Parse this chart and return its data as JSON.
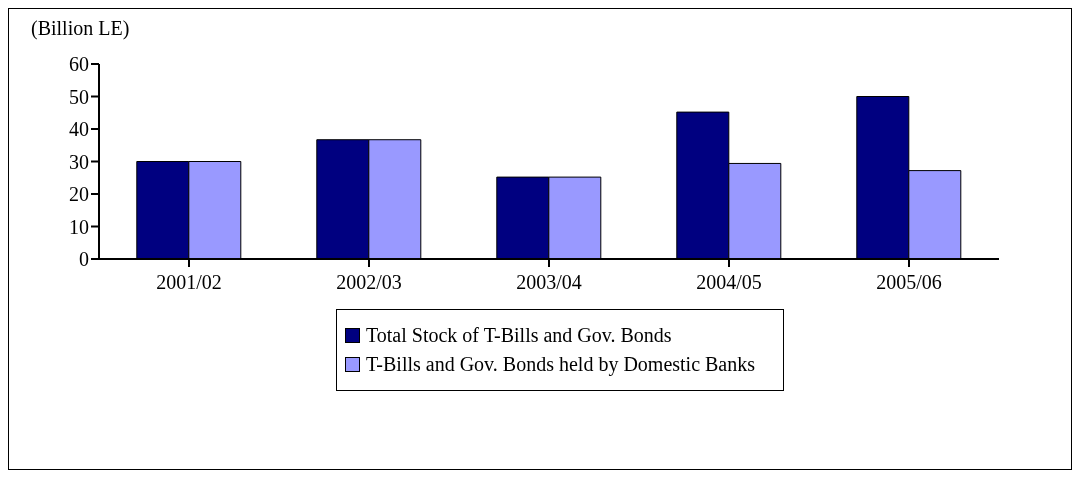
{
  "chart_data": {
    "type": "bar",
    "ylabel": "(Billion LE)",
    "categories": [
      "2001/02",
      "2002/03",
      "2003/04",
      "2004/05",
      "2005/06"
    ],
    "series": [
      {
        "name": "Total Stock of T-Bills and Gov. Bonds",
        "color": "#000080",
        "values": [
          30,
          36.7,
          25.2,
          45.2,
          50
        ]
      },
      {
        "name": "T-Bills and Gov. Bonds held by Domestic Banks",
        "color": "#9999ff",
        "values": [
          30,
          36.7,
          25.2,
          29.4,
          27.2
        ]
      }
    ],
    "ylim": [
      0,
      60
    ],
    "yticks": [
      0,
      10,
      20,
      30,
      40,
      50,
      60
    ],
    "grid": false,
    "legend": "bottom"
  }
}
